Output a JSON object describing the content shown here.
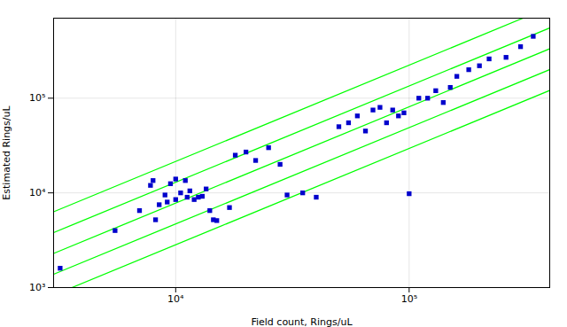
{
  "chart_data": {
    "type": "scatter",
    "xlabel": "Field count, Rings/uL",
    "ylabel": "Estimated Rings/uL",
    "log": true,
    "grid": true,
    "xlim": [
      3000,
      400000
    ],
    "ylim": [
      1000,
      700000
    ],
    "xticks": [
      {
        "value": 10000,
        "label": "10⁴"
      },
      {
        "value": 100000,
        "label": "10⁵"
      }
    ],
    "yticks": [
      {
        "value": 1000,
        "label": "10³"
      },
      {
        "value": 10000,
        "label": "10⁴"
      },
      {
        "value": 100000,
        "label": "10⁵"
      }
    ],
    "series": [
      {
        "type": "scatter",
        "marker": "square",
        "color": "#0000CC",
        "x": [
          3200,
          5500,
          7000,
          7800,
          8000,
          8200,
          8500,
          9000,
          9200,
          9500,
          10000,
          10000,
          10500,
          11000,
          11200,
          11500,
          12000,
          12500,
          13000,
          13500,
          14000,
          14500,
          15000,
          17000,
          18000,
          20000,
          22000,
          25000,
          28000,
          30000,
          35000,
          40000,
          50000,
          55000,
          60000,
          65000,
          70000,
          75000,
          80000,
          85000,
          90000,
          95000,
          100000,
          110000,
          120000,
          130000,
          140000,
          150000,
          160000,
          180000,
          200000,
          220000,
          260000,
          300000,
          340000
        ],
        "values": [
          1600,
          4000,
          6500,
          12000,
          13500,
          5200,
          7500,
          9500,
          8000,
          12500,
          8500,
          14000,
          10000,
          13500,
          9000,
          10500,
          8500,
          9000,
          9200,
          11000,
          6500,
          5200,
          5100,
          7000,
          25000,
          27000,
          22000,
          30000,
          20000,
          9500,
          10000,
          9000,
          50000,
          55000,
          65000,
          45000,
          75000,
          80000,
          55000,
          75000,
          65000,
          70000,
          9800,
          100000,
          100000,
          120000,
          90000,
          130000,
          170000,
          200000,
          220000,
          260000,
          270000,
          350000,
          450000
        ]
      },
      {
        "type": "line",
        "color": "#00FF00",
        "x": [
          3000,
          307232
        ],
        "values": [
          6315,
          700000
        ]
      },
      {
        "type": "line",
        "color": "#00FF00",
        "x": [
          3592.8,
          400000
        ],
        "values": [
          1000,
          120685
        ]
      },
      {
        "type": "line",
        "color": "#00FF00",
        "x": [
          3000,
          400000
        ],
        "values": [
          3805,
          551636
        ]
      },
      {
        "type": "line",
        "color": "#00FF00",
        "x": [
          3000,
          400000
        ],
        "values": [
          1381.5,
          200287
        ]
      },
      {
        "type": "line",
        "color": "#00FF00",
        "x": [
          3000,
          400000
        ],
        "values": [
          2293,
          332394
        ]
      }
    ]
  }
}
